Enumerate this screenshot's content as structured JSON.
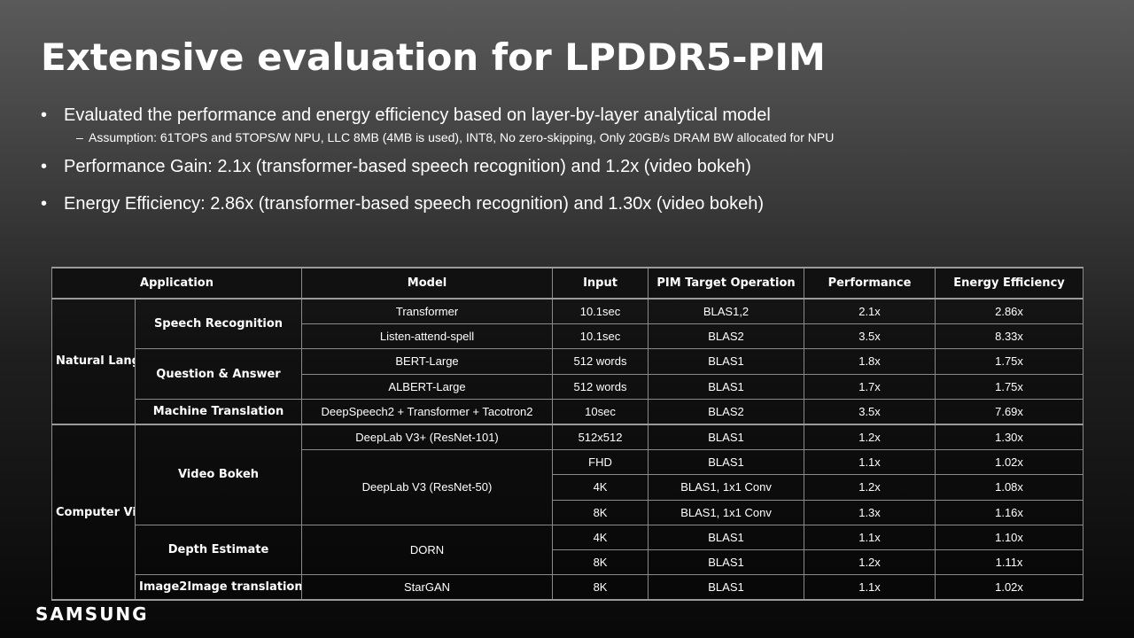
{
  "title": "Extensive evaluation for LPDDR5-PIM",
  "bullets": {
    "b1": "Evaluated the performance and energy efficiency based on layer-by-layer analytical model",
    "b1_sub_dash": "–",
    "b1_sub": "Assumption:  61TOPS and 5TOPS/W NPU, LLC 8MB (4MB is used), INT8, No zero-skipping, Only 20GB/s DRAM BW allocated for NPU",
    "b2": "Performance Gain: 2.1x (transformer-based speech recognition) and 1.2x (video bokeh)",
    "b3": "Energy Efficiency: 2.86x (transformer-based speech recognition) and 1.30x (video bokeh)"
  },
  "table": {
    "headers": {
      "application": "Application",
      "model": "Model",
      "input": "Input",
      "operation": "PIM Target Operation",
      "performance": "Performance",
      "energy": "Energy Efficiency"
    },
    "categories": {
      "nlp": "Natural Language Processing",
      "cv": "Computer Vision"
    },
    "tasks": {
      "speech": "Speech Recognition",
      "qa": "Question & Answer",
      "mt": "Machine Translation",
      "bokeh": "Video Bokeh",
      "depth": "Depth Estimate",
      "i2i": "Image2Image translation"
    },
    "rows": [
      {
        "model": "Transformer",
        "input": "10.1sec",
        "op": "BLAS1,2",
        "perf": "2.1x",
        "energy": "2.86x"
      },
      {
        "model": "Listen-attend-spell",
        "input": "10.1sec",
        "op": "BLAS2",
        "perf": "3.5x",
        "energy": "8.33x"
      },
      {
        "model": "BERT-Large",
        "input": "512 words",
        "op": "BLAS1",
        "perf": "1.8x",
        "energy": "1.75x"
      },
      {
        "model": "ALBERT-Large",
        "input": "512 words",
        "op": "BLAS1",
        "perf": "1.7x",
        "energy": "1.75x"
      },
      {
        "model": "DeepSpeech2 + Transformer + Tacotron2",
        "input": "10sec",
        "op": "BLAS2",
        "perf": "3.5x",
        "energy": "7.69x"
      },
      {
        "model": "DeepLab V3+ (ResNet-101)",
        "input": "512x512",
        "op": "BLAS1",
        "perf": "1.2x",
        "energy": "1.30x"
      },
      {
        "model": "DeepLab V3 (ResNet-50)",
        "input": "FHD",
        "op": "BLAS1",
        "perf": "1.1x",
        "energy": "1.02x"
      },
      {
        "model": "",
        "input": "4K",
        "op": "BLAS1, 1x1 Conv",
        "perf": "1.2x",
        "energy": "1.08x"
      },
      {
        "model": "",
        "input": "8K",
        "op": "BLAS1, 1x1 Conv",
        "perf": "1.3x",
        "energy": "1.16x"
      },
      {
        "model": "DORN",
        "input": "4K",
        "op": "BLAS1",
        "perf": "1.1x",
        "energy": "1.10x"
      },
      {
        "model": "",
        "input": "8K",
        "op": "BLAS1",
        "perf": "1.2x",
        "energy": "1.11x"
      },
      {
        "model": "StarGAN",
        "input": "8K",
        "op": "BLAS1",
        "perf": "1.1x",
        "energy": "1.02x"
      }
    ]
  },
  "logo": "SAMSUNG"
}
